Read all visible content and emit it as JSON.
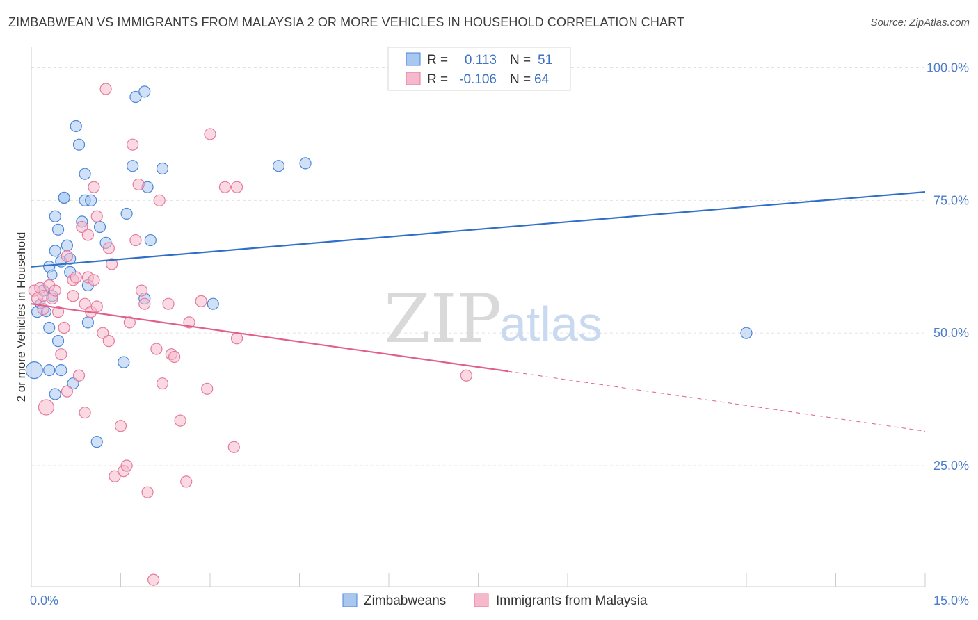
{
  "title": "ZIMBABWEAN VS IMMIGRANTS FROM MALAYSIA 2 OR MORE VEHICLES IN HOUSEHOLD CORRELATION CHART",
  "source": "Source: ZipAtlas.com",
  "watermark": {
    "zip": "ZIP",
    "atlas": "atlas"
  },
  "colors": {
    "blue": "#4a86d8",
    "blue_fill": "#a9c8f0",
    "blue_line": "#2f6fc9",
    "pink": "#e57a9c",
    "pink_fill": "#f6b9cc",
    "pink_line": "#e0608a",
    "tick": "#4a7cc9"
  },
  "legend": {
    "rows": [
      {
        "r_label": "R =",
        "r_value": "0.113",
        "n_label": "N =",
        "n_value": "51"
      },
      {
        "r_label": "R =",
        "r_value": "-0.106",
        "n_label": "N =",
        "n_value": "64"
      }
    ]
  },
  "chart_data": {
    "type": "scatter",
    "title": "ZIMBABWEAN VS IMMIGRANTS FROM MALAYSIA 2 OR MORE VEHICLES IN HOUSEHOLD CORRELATION CHART",
    "xlabel": "",
    "ylabel": "2 or more Vehicles in Household",
    "xlim": [
      0,
      15
    ],
    "ylim": [
      0,
      100
    ],
    "x_tick_labels": [
      "0.0%",
      "15.0%"
    ],
    "y_ticks": [
      25,
      50,
      75,
      100
    ],
    "y_tick_labels": [
      "25.0%",
      "50.0%",
      "75.0%",
      "100.0%"
    ],
    "grid": true,
    "legend_placement": "top-center",
    "series": [
      {
        "name": "Zimbabweans",
        "r": 0.113,
        "n": 51,
        "trend": {
          "x": [
            0,
            15
          ],
          "y": [
            62.5,
            76.6
          ]
        },
        "points": [
          [
            0.05,
            43.0,
            12
          ],
          [
            0.1,
            54.0,
            8
          ],
          [
            0.15,
            55.5,
            7
          ],
          [
            0.2,
            58.0,
            8
          ],
          [
            0.25,
            54.0,
            7
          ],
          [
            0.3,
            62.5,
            8
          ],
          [
            0.35,
            57.0,
            8
          ],
          [
            0.3,
            51.0,
            8
          ],
          [
            0.3,
            43.0,
            8
          ],
          [
            0.35,
            61.0,
            7
          ],
          [
            0.4,
            65.5,
            8
          ],
          [
            0.4,
            72.0,
            8
          ],
          [
            0.45,
            69.5,
            8
          ],
          [
            0.4,
            38.5,
            8
          ],
          [
            0.45,
            48.5,
            8
          ],
          [
            0.5,
            43.0,
            8
          ],
          [
            0.5,
            63.5,
            8
          ],
          [
            0.55,
            75.5,
            8
          ],
          [
            0.55,
            75.5,
            8
          ],
          [
            0.6,
            66.5,
            8
          ],
          [
            0.65,
            64.0,
            8
          ],
          [
            0.65,
            61.5,
            8
          ],
          [
            0.7,
            40.5,
            8
          ],
          [
            0.75,
            89.0,
            8
          ],
          [
            0.8,
            85.5,
            8
          ],
          [
            0.85,
            71.0,
            8
          ],
          [
            0.9,
            75.0,
            8
          ],
          [
            0.9,
            80.0,
            8
          ],
          [
            0.95,
            52.0,
            8
          ],
          [
            0.95,
            59.0,
            8
          ],
          [
            1.0,
            75.0,
            8
          ],
          [
            1.1,
            29.5,
            8
          ],
          [
            1.15,
            70.0,
            8
          ],
          [
            1.25,
            67.0,
            8
          ],
          [
            1.55,
            44.5,
            8
          ],
          [
            1.6,
            72.5,
            8
          ],
          [
            1.7,
            81.5,
            8
          ],
          [
            1.75,
            94.5,
            8
          ],
          [
            1.9,
            95.5,
            8
          ],
          [
            1.9,
            56.5,
            8
          ],
          [
            1.95,
            77.5,
            8
          ],
          [
            2.0,
            67.5,
            8
          ],
          [
            2.2,
            81.0,
            8
          ],
          [
            3.05,
            55.5,
            8
          ],
          [
            4.15,
            81.5,
            8
          ],
          [
            4.6,
            82.0,
            8
          ],
          [
            12.0,
            50.0,
            8
          ]
        ]
      },
      {
        "name": "Immigrants from Malaysia",
        "r": -0.106,
        "n": 64,
        "trend": {
          "x": [
            0,
            8
          ],
          "y": [
            55.5,
            42.8
          ]
        },
        "trend_dashed": {
          "x": [
            8,
            15
          ],
          "y": [
            42.8,
            31.5
          ]
        },
        "points": [
          [
            0.05,
            58.0,
            8
          ],
          [
            0.1,
            56.5,
            8
          ],
          [
            0.15,
            58.5,
            8
          ],
          [
            0.2,
            57.0,
            8
          ],
          [
            0.2,
            54.5,
            8
          ],
          [
            0.25,
            36.0,
            11
          ],
          [
            0.3,
            59.0,
            8
          ],
          [
            0.35,
            56.5,
            8
          ],
          [
            0.4,
            58.0,
            8
          ],
          [
            0.45,
            54.0,
            8
          ],
          [
            0.5,
            46.0,
            8
          ],
          [
            0.55,
            51.0,
            8
          ],
          [
            0.6,
            64.5,
            8
          ],
          [
            0.6,
            39.0,
            8
          ],
          [
            0.7,
            60.0,
            8
          ],
          [
            0.7,
            57.0,
            8
          ],
          [
            0.75,
            60.5,
            8
          ],
          [
            0.8,
            42.0,
            8
          ],
          [
            0.85,
            70.0,
            8
          ],
          [
            0.9,
            55.5,
            8
          ],
          [
            0.9,
            35.0,
            8
          ],
          [
            0.95,
            68.5,
            8
          ],
          [
            0.95,
            60.5,
            8
          ],
          [
            1.0,
            54.0,
            8
          ],
          [
            1.05,
            77.5,
            8
          ],
          [
            1.05,
            60.0,
            8
          ],
          [
            1.1,
            72.0,
            8
          ],
          [
            1.1,
            55.0,
            8
          ],
          [
            1.2,
            50.0,
            8
          ],
          [
            1.25,
            96.0,
            8
          ],
          [
            1.3,
            66.0,
            8
          ],
          [
            1.3,
            48.5,
            8
          ],
          [
            1.35,
            63.0,
            8
          ],
          [
            1.4,
            23.0,
            8
          ],
          [
            1.5,
            32.5,
            8
          ],
          [
            1.55,
            24.0,
            8
          ],
          [
            1.6,
            25.0,
            8
          ],
          [
            1.65,
            52.0,
            8
          ],
          [
            1.7,
            85.5,
            8
          ],
          [
            1.75,
            67.5,
            8
          ],
          [
            1.8,
            78.0,
            8
          ],
          [
            1.85,
            58.0,
            8
          ],
          [
            1.9,
            55.5,
            8
          ],
          [
            1.95,
            20.0,
            8
          ],
          [
            2.05,
            3.5,
            8
          ],
          [
            2.1,
            47.0,
            8
          ],
          [
            2.15,
            75.0,
            8
          ],
          [
            2.2,
            40.5,
            8
          ],
          [
            2.3,
            55.5,
            8
          ],
          [
            2.35,
            46.0,
            8
          ],
          [
            2.4,
            45.5,
            8
          ],
          [
            2.5,
            33.5,
            8
          ],
          [
            2.6,
            22.0,
            8
          ],
          [
            2.65,
            52.0,
            8
          ],
          [
            2.85,
            56.0,
            8
          ],
          [
            2.95,
            39.5,
            8
          ],
          [
            3.0,
            87.5,
            8
          ],
          [
            3.25,
            77.5,
            8
          ],
          [
            3.4,
            28.5,
            8
          ],
          [
            3.45,
            49.0,
            8
          ],
          [
            3.45,
            77.5,
            8
          ],
          [
            7.3,
            42.0,
            8
          ]
        ]
      }
    ]
  }
}
